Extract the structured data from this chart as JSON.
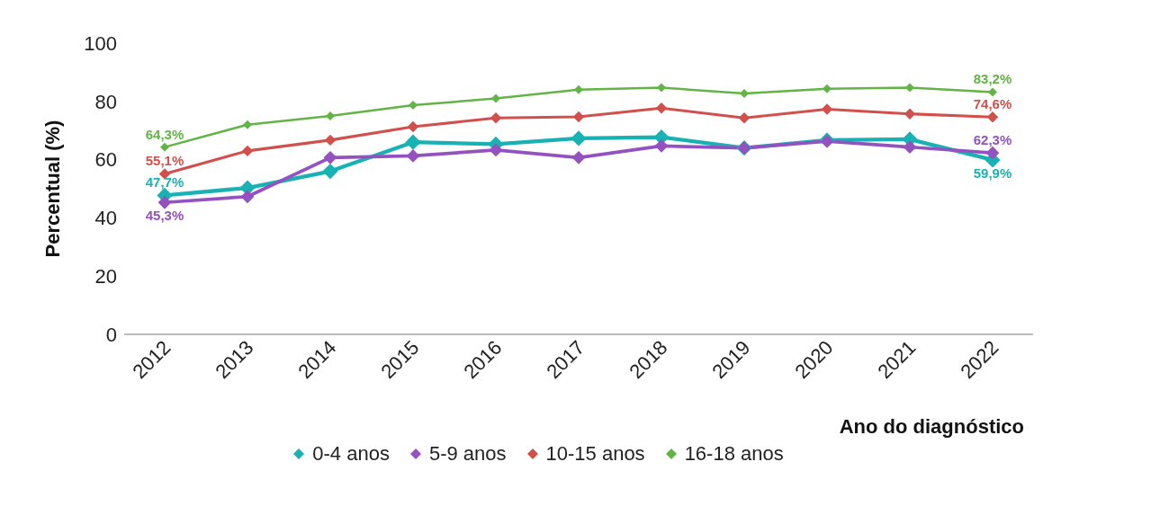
{
  "chart_data": {
    "type": "line",
    "ylabel": "Percentual (%)",
    "xlabel": "Ano do diagnóstico",
    "categories": [
      "2012",
      "2013",
      "2014",
      "2015",
      "2016",
      "2017",
      "2018",
      "2019",
      "2020",
      "2021",
      "2022"
    ],
    "ylim": [
      0,
      100
    ],
    "yticks": [
      0,
      20,
      40,
      60,
      80,
      100
    ],
    "grid": false,
    "legend": "bottom",
    "marker": "diamond",
    "line_style": "solid",
    "series": [
      {
        "name": "0-4 anos",
        "color": "#19b2b4",
        "values": [
          47.7,
          50.3,
          56,
          66,
          65.3,
          67.3,
          67.7,
          64,
          66.7,
          67,
          59.9
        ],
        "value_labels": [
          "47,7%",
          null,
          null,
          null,
          null,
          null,
          null,
          null,
          null,
          null,
          "59,9%"
        ]
      },
      {
        "name": "5-9 anos",
        "color": "#9352bf",
        "values": [
          45.3,
          47.3,
          60.7,
          61.3,
          63.3,
          60.7,
          64.7,
          64,
          66.3,
          64.3,
          62.3
        ],
        "value_labels": [
          "45,3%",
          null,
          null,
          null,
          null,
          null,
          null,
          null,
          null,
          null,
          "62,3%"
        ]
      },
      {
        "name": "10-15 anos",
        "color": "#d1504b",
        "values": [
          55.1,
          63,
          66.7,
          71.3,
          74.3,
          74.7,
          77.7,
          74.3,
          77.3,
          75.7,
          74.6
        ],
        "value_labels": [
          "55,1%",
          null,
          null,
          null,
          null,
          null,
          null,
          null,
          null,
          null,
          "74,6%"
        ]
      },
      {
        "name": "16-18 anos",
        "color": "#62b446",
        "values": [
          64.3,
          72,
          75,
          78.7,
          81,
          84,
          84.7,
          82.7,
          84.3,
          84.7,
          83.2
        ],
        "value_labels": [
          "64,3%",
          null,
          null,
          null,
          null,
          null,
          null,
          null,
          null,
          null,
          "83,2%"
        ]
      }
    ]
  }
}
